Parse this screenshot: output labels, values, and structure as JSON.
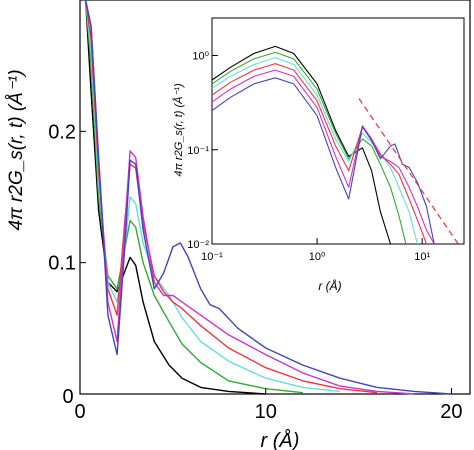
{
  "chart_data": [
    {
      "type": "line",
      "xlabel": "r (Å)",
      "ylabel": "4π r2G_s(r, t) (Å⁻¹)",
      "xlim": [
        0,
        21
      ],
      "ylim": [
        0,
        0.3
      ],
      "xticks": [
        0,
        10,
        20
      ],
      "yticks": [
        0.1,
        0.2
      ],
      "xtick_labels": [
        "0",
        "10",
        "20"
      ],
      "ytick_labels": [
        "0.1",
        "0.2"
      ],
      "origin_label": "0",
      "grid": false,
      "legend": "none",
      "series": [
        {
          "color": "#000000",
          "x": [
            0.3,
            0.6,
            1.0,
            1.5,
            2.0,
            2.4,
            2.7,
            3.0,
            3.4,
            4.0,
            4.8,
            5.5,
            6.5,
            8.0,
            10.0
          ],
          "y": [
            0.3,
            0.23,
            0.14,
            0.085,
            0.078,
            0.093,
            0.104,
            0.098,
            0.07,
            0.04,
            0.022,
            0.012,
            0.005,
            0.002,
            0.0
          ]
        },
        {
          "color": "#33aa33",
          "x": [
            0.3,
            0.6,
            1.0,
            1.5,
            2.0,
            2.4,
            2.7,
            3.0,
            3.4,
            4.0,
            4.8,
            5.5,
            6.5,
            8.0,
            10.0,
            12.0
          ],
          "y": [
            0.3,
            0.25,
            0.15,
            0.09,
            0.08,
            0.11,
            0.132,
            0.127,
            0.1,
            0.075,
            0.055,
            0.038,
            0.024,
            0.01,
            0.004,
            0.001
          ]
        },
        {
          "color": "#66dddd",
          "x": [
            0.3,
            0.6,
            1.0,
            1.5,
            2.0,
            2.4,
            2.7,
            3.0,
            3.4,
            4.0,
            4.8,
            5.5,
            6.5,
            8.0,
            10.0,
            12.0,
            14.0
          ],
          "y": [
            0.3,
            0.26,
            0.16,
            0.085,
            0.07,
            0.11,
            0.15,
            0.145,
            0.115,
            0.09,
            0.075,
            0.058,
            0.04,
            0.025,
            0.012,
            0.005,
            0.002
          ]
        },
        {
          "color": "#ee3344",
          "x": [
            0.3,
            0.6,
            1.0,
            1.5,
            2.0,
            2.4,
            2.7,
            3.0,
            3.4,
            4.0,
            4.5,
            5.0,
            5.5,
            6.5,
            8.0,
            10.0,
            12.0,
            14.0,
            16.0
          ],
          "y": [
            0.3,
            0.27,
            0.17,
            0.08,
            0.06,
            0.13,
            0.175,
            0.172,
            0.13,
            0.09,
            0.078,
            0.07,
            0.065,
            0.052,
            0.035,
            0.02,
            0.01,
            0.004,
            0.001
          ]
        },
        {
          "color": "#cc33cc",
          "x": [
            0.3,
            0.6,
            1.0,
            1.5,
            2.0,
            2.4,
            2.7,
            3.0,
            3.4,
            4.0,
            4.5,
            5.0,
            5.5,
            6.5,
            8.0,
            10.0,
            12.0,
            14.0,
            16.0,
            18.0
          ],
          "y": [
            0.3,
            0.28,
            0.18,
            0.07,
            0.04,
            0.125,
            0.185,
            0.18,
            0.135,
            0.085,
            0.075,
            0.075,
            0.07,
            0.06,
            0.045,
            0.03,
            0.016,
            0.006,
            0.002,
            0.0
          ]
        },
        {
          "color": "#4444bb",
          "x": [
            0.3,
            0.6,
            1.0,
            1.5,
            2.0,
            2.4,
            2.7,
            3.0,
            3.4,
            4.0,
            4.5,
            5.0,
            5.4,
            5.8,
            6.5,
            7.0,
            7.5,
            8.5,
            10.0,
            12.0,
            14.0,
            16.0,
            18.0,
            20.0
          ],
          "y": [
            0.3,
            0.28,
            0.18,
            0.06,
            0.03,
            0.11,
            0.178,
            0.175,
            0.125,
            0.08,
            0.092,
            0.112,
            0.115,
            0.105,
            0.08,
            0.068,
            0.065,
            0.05,
            0.035,
            0.022,
            0.012,
            0.005,
            0.002,
            0.0
          ]
        }
      ]
    },
    {
      "type": "line",
      "xlabel": "r (Å)",
      "ylabel": "4π r2G_s(r, t) (Å⁻¹)",
      "xscale": "log",
      "yscale": "log",
      "xlim": [
        0.1,
        25
      ],
      "ylim": [
        0.01,
        2.5
      ],
      "xticks": [
        0.1,
        1,
        10
      ],
      "yticks": [
        0.01,
        0.1,
        1
      ],
      "xtick_labels": [
        "10⁻¹",
        "10⁰",
        "10¹"
      ],
      "ytick_labels": [
        "10⁻²",
        "10⁻¹",
        "10⁰"
      ],
      "grid": false,
      "legend": "none",
      "series": [
        {
          "color": "#000000",
          "x": [
            0.1,
            0.15,
            0.25,
            0.4,
            0.6,
            1.0,
            1.5,
            2.0,
            2.7,
            3.3,
            4.0,
            5.0
          ],
          "y": [
            0.55,
            0.75,
            1.05,
            1.25,
            1.05,
            0.5,
            0.16,
            0.085,
            0.105,
            0.06,
            0.022,
            0.01
          ]
        },
        {
          "color": "#33aa33",
          "x": [
            0.1,
            0.15,
            0.25,
            0.4,
            0.6,
            1.0,
            1.5,
            2.0,
            2.7,
            3.3,
            4.0,
            5.0,
            6.0,
            7.0
          ],
          "y": [
            0.5,
            0.68,
            0.92,
            1.08,
            0.92,
            0.44,
            0.15,
            0.08,
            0.13,
            0.11,
            0.07,
            0.04,
            0.02,
            0.01
          ]
        },
        {
          "color": "#66dddd",
          "x": [
            0.1,
            0.15,
            0.25,
            0.4,
            0.6,
            1.0,
            1.5,
            2.0,
            2.7,
            3.3,
            4.0,
            5.0,
            6.0,
            7.5,
            9.0
          ],
          "y": [
            0.45,
            0.6,
            0.8,
            0.95,
            0.8,
            0.38,
            0.13,
            0.075,
            0.15,
            0.12,
            0.09,
            0.065,
            0.04,
            0.022,
            0.01
          ]
        },
        {
          "color": "#ee3344",
          "x": [
            0.1,
            0.15,
            0.25,
            0.4,
            0.6,
            1.0,
            1.5,
            2.0,
            2.7,
            3.3,
            4.0,
            5.0,
            6.0,
            7.5,
            9.0,
            11.0
          ],
          "y": [
            0.38,
            0.52,
            0.7,
            0.82,
            0.7,
            0.33,
            0.11,
            0.06,
            0.175,
            0.13,
            0.09,
            0.07,
            0.055,
            0.03,
            0.018,
            0.01
          ]
        },
        {
          "color": "#cc33cc",
          "x": [
            0.1,
            0.15,
            0.25,
            0.4,
            0.6,
            1.0,
            1.5,
            2.0,
            2.7,
            3.3,
            4.0,
            5.0,
            6.0,
            7.5,
            9.0,
            11.0,
            13.0
          ],
          "y": [
            0.32,
            0.44,
            0.6,
            0.7,
            0.6,
            0.28,
            0.085,
            0.04,
            0.18,
            0.13,
            0.085,
            0.075,
            0.065,
            0.04,
            0.025,
            0.014,
            0.01
          ]
        },
        {
          "color": "#4444bb",
          "x": [
            0.1,
            0.15,
            0.25,
            0.4,
            0.6,
            1.0,
            1.5,
            2.0,
            2.7,
            3.3,
            4.0,
            5.0,
            5.5,
            6.5,
            7.5,
            9.0,
            11.0,
            13.0
          ],
          "y": [
            0.26,
            0.36,
            0.5,
            0.58,
            0.5,
            0.23,
            0.065,
            0.03,
            0.175,
            0.125,
            0.08,
            0.11,
            0.115,
            0.07,
            0.065,
            0.045,
            0.025,
            0.01
          ]
        }
      ],
      "reference_line": {
        "color": "#ee3344",
        "style": "dashed",
        "x": [
          2.5,
          22
        ],
        "y": [
          0.35,
          0.01
        ]
      }
    }
  ]
}
